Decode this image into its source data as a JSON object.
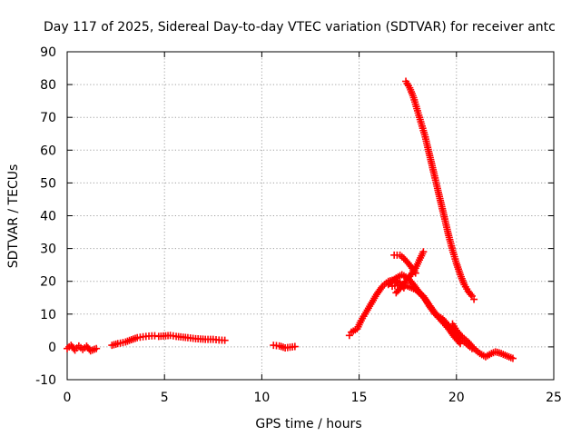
{
  "chart_data": {
    "type": "scatter",
    "title": "Day 117 of 2025, Sidereal Day-to-day VTEC variation (SDTVAR) for receiver antc",
    "xlabel": "GPS time / hours",
    "ylabel": "SDTVAR / TECUs",
    "xlim": [
      0,
      25
    ],
    "ylim": [
      -10,
      90
    ],
    "xticks": [
      0,
      5,
      10,
      15,
      20,
      25
    ],
    "yticks": [
      -10,
      0,
      10,
      20,
      30,
      40,
      50,
      60,
      70,
      80,
      90
    ],
    "grid": true,
    "marker": "+",
    "series_color": "#ff0000",
    "segments": [
      {
        "name": "early-0-1h",
        "points": [
          [
            0.0,
            -0.5
          ],
          [
            0.2,
            0.5
          ],
          [
            0.4,
            -1.0
          ],
          [
            0.6,
            0.3
          ],
          [
            0.8,
            -0.8
          ],
          [
            1.0,
            0.2
          ],
          [
            1.2,
            -1.2
          ],
          [
            1.5,
            -0.5
          ]
        ]
      },
      {
        "name": "early-2-5h",
        "points": [
          [
            2.3,
            0.5
          ],
          [
            2.6,
            1.0
          ],
          [
            3.0,
            1.5
          ],
          [
            3.3,
            2.2
          ],
          [
            3.6,
            2.8
          ],
          [
            3.9,
            3.1
          ],
          [
            4.2,
            3.3
          ],
          [
            4.5,
            3.4
          ],
          [
            4.7,
            3.2
          ],
          [
            5.3,
            3.5
          ],
          [
            5.6,
            3.2
          ],
          [
            6.2,
            2.8
          ],
          [
            6.6,
            2.5
          ],
          [
            7.1,
            2.3
          ],
          [
            7.5,
            2.3
          ],
          [
            7.8,
            2.1
          ],
          [
            8.1,
            2.0
          ]
        ]
      },
      {
        "name": "mid-10-12h",
        "points": [
          [
            10.6,
            0.5
          ],
          [
            10.9,
            0.3
          ],
          [
            11.2,
            -0.3
          ],
          [
            11.7,
            0.1
          ]
        ]
      },
      {
        "name": "rise-14-17h",
        "points": [
          [
            14.5,
            3.5
          ],
          [
            14.6,
            4.5
          ],
          [
            14.9,
            5.5
          ],
          [
            15.1,
            8.0
          ],
          [
            15.3,
            10.0
          ],
          [
            15.6,
            13.0
          ],
          [
            15.9,
            16.0
          ],
          [
            16.2,
            18.5
          ],
          [
            16.5,
            20.0
          ],
          [
            16.8,
            20.5
          ],
          [
            17.1,
            19.5
          ],
          [
            17.3,
            18.0
          ]
        ]
      },
      {
        "name": "arc-upper",
        "points": [
          [
            16.5,
            19.0
          ],
          [
            16.9,
            21.0
          ],
          [
            17.2,
            22.0
          ],
          [
            17.5,
            21.0
          ],
          [
            17.8,
            19.0
          ],
          [
            18.1,
            16.5
          ],
          [
            18.4,
            14.5
          ],
          [
            18.7,
            12.0
          ],
          [
            19.0,
            9.5
          ],
          [
            19.3,
            7.5
          ],
          [
            19.6,
            5.5
          ],
          [
            19.9,
            3.0
          ],
          [
            20.2,
            1.0
          ]
        ]
      },
      {
        "name": "arc-lower",
        "points": [
          [
            16.7,
            18.5
          ],
          [
            17.1,
            19.0
          ],
          [
            17.5,
            18.5
          ],
          [
            17.9,
            17.5
          ],
          [
            18.3,
            15.5
          ],
          [
            18.6,
            12.5
          ],
          [
            18.9,
            10.0
          ],
          [
            19.3,
            8.5
          ],
          [
            19.6,
            6.5
          ],
          [
            19.9,
            4.5
          ],
          [
            20.2,
            2.5
          ],
          [
            20.5,
            1.0
          ],
          [
            20.8,
            -0.5
          ]
        ]
      },
      {
        "name": "cross-up",
        "points": [
          [
            16.9,
            16.5
          ],
          [
            17.2,
            18.5
          ],
          [
            17.6,
            21.5
          ],
          [
            17.9,
            24.0
          ],
          [
            18.1,
            26.5
          ],
          [
            18.3,
            29.0
          ]
        ]
      },
      {
        "name": "cross-down",
        "points": [
          [
            16.8,
            28.0
          ],
          [
            17.1,
            28.0
          ],
          [
            17.3,
            27.0
          ],
          [
            17.6,
            25.0
          ],
          [
            17.9,
            22.5
          ]
        ]
      },
      {
        "name": "steep-fall",
        "points": [
          [
            17.4,
            81.0
          ],
          [
            17.6,
            79.0
          ],
          [
            17.8,
            76.0
          ],
          [
            18.0,
            72.0
          ],
          [
            18.2,
            68.0
          ],
          [
            18.4,
            64.0
          ],
          [
            18.6,
            59.0
          ],
          [
            18.8,
            54.0
          ],
          [
            19.0,
            49.0
          ],
          [
            19.2,
            44.0
          ],
          [
            19.4,
            39.0
          ],
          [
            19.6,
            34.0
          ],
          [
            19.8,
            29.5
          ],
          [
            20.0,
            25.5
          ],
          [
            20.2,
            22.0
          ],
          [
            20.4,
            19.0
          ],
          [
            20.6,
            17.0
          ],
          [
            20.8,
            15.5
          ],
          [
            20.9,
            14.5
          ]
        ]
      },
      {
        "name": "tail-20-23h",
        "points": [
          [
            19.8,
            7.0
          ],
          [
            20.0,
            5.0
          ],
          [
            20.3,
            3.0
          ],
          [
            20.6,
            1.5
          ],
          [
            20.9,
            -0.5
          ],
          [
            21.2,
            -2.0
          ],
          [
            21.5,
            -3.0
          ],
          [
            21.8,
            -2.0
          ],
          [
            22.0,
            -1.5
          ],
          [
            22.3,
            -2.0
          ],
          [
            22.6,
            -2.8
          ],
          [
            22.9,
            -3.5
          ]
        ]
      }
    ]
  }
}
